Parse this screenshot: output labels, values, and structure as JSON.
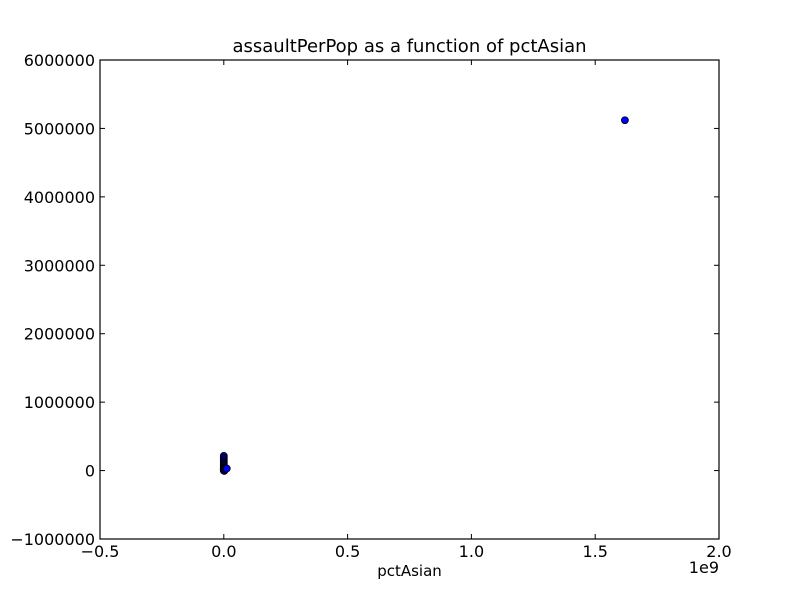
{
  "chart_data": {
    "type": "scatter",
    "title": "assaultPerPop as a function of pctAsian",
    "xlabel": "pctAsian",
    "ylabel": "",
    "x_offset_label": "1e9",
    "xlim": [
      -0.5,
      2.0
    ],
    "ylim": [
      -1000000,
      6000000
    ],
    "x_ticks": [
      -0.5,
      0.0,
      0.5,
      1.0,
      1.5,
      2.0
    ],
    "x_tick_labels": [
      "−0.5",
      "0.0",
      "0.5",
      "1.0",
      "1.5",
      "2.0"
    ],
    "y_ticks": [
      -1000000,
      0,
      1000000,
      2000000,
      3000000,
      4000000,
      5000000,
      6000000
    ],
    "y_tick_labels": [
      "−1000000",
      "0",
      "1000000",
      "2000000",
      "3000000",
      "4000000",
      "5000000",
      "6000000"
    ],
    "grid": false,
    "marker_color": "#0000ff",
    "x_unit_scale": 1000000000,
    "series": [
      {
        "x": [
          0.0,
          0.0,
          0.0,
          0.0,
          0.0,
          0.0,
          0.0,
          0.0,
          0.0,
          0.0,
          0.0,
          0.0,
          0.0,
          0.0,
          0.0,
          0.0,
          0.002,
          0.004,
          0.004,
          0.008,
          0.012,
          1.62
        ],
        "y": [
          215000,
          195000,
          175000,
          150000,
          130000,
          110000,
          95000,
          80000,
          65000,
          50000,
          40000,
          30000,
          20000,
          10000,
          5000,
          0,
          -5000,
          10000,
          25000,
          35000,
          30000,
          5120000
        ]
      }
    ]
  }
}
